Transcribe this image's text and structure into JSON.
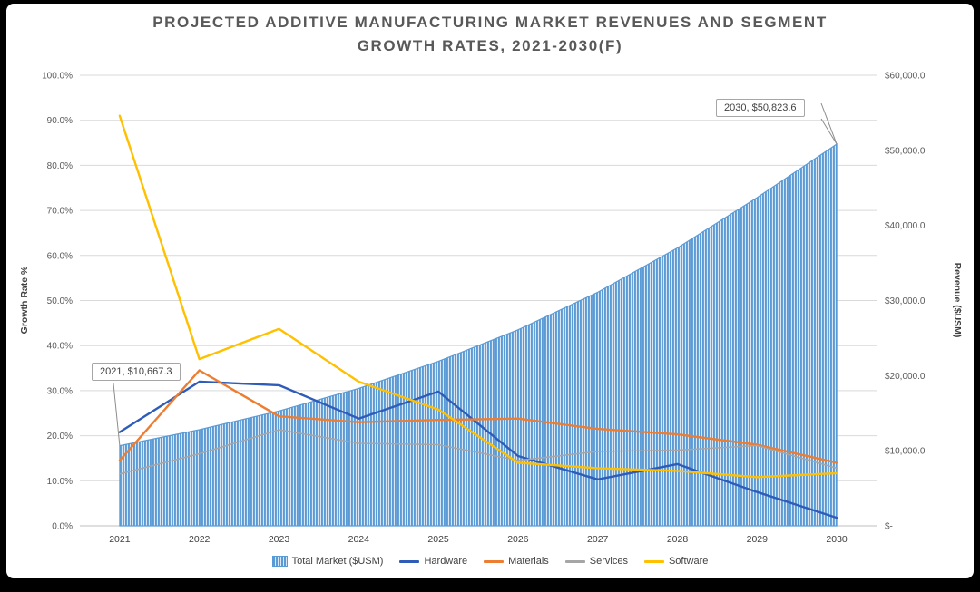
{
  "title": "PROJECTED ADDITIVE MANUFACTURING MARKET REVENUES AND SEGMENT GROWTH RATES, 2021-2030(F)",
  "callouts": {
    "c2021": "2021,  $10,667.3",
    "c2030": "2030,  $50,823.6"
  },
  "legend": {
    "items": [
      {
        "label": "Total Market ($USM)",
        "color": "#5b9bd5",
        "swatch": "area"
      },
      {
        "label": "Hardware",
        "color": "#2e5cb8",
        "swatch": "line"
      },
      {
        "label": "Materials",
        "color": "#ed7d31",
        "swatch": "line"
      },
      {
        "label": "Services",
        "color": "#a6a6a6",
        "swatch": "line"
      },
      {
        "label": "Software",
        "color": "#ffc000",
        "swatch": "line"
      }
    ]
  },
  "chart_data": {
    "type": "combo",
    "title": "PROJECTED ADDITIVE MANUFACTURING MARKET REVENUES AND SEGMENT GROWTH RATES, 2021-2030(F)",
    "categories": [
      "2021",
      "2022",
      "2023",
      "2024",
      "2025",
      "2026",
      "2027",
      "2028",
      "2029",
      "2030"
    ],
    "left_axis": {
      "label": "Growth Rate %",
      "min": 0,
      "max": 100,
      "tick_step": 10,
      "tick_labels": [
        "0.0%",
        "10.0%",
        "20.0%",
        "30.0%",
        "40.0%",
        "50.0%",
        "60.0%",
        "70.0%",
        "80.0%",
        "90.0%",
        "100.0%"
      ]
    },
    "right_axis": {
      "label": "Revenue ($USM)",
      "min": 0,
      "max": 60000,
      "tick_step": 10000,
      "tick_labels": [
        "$-",
        "$10,000.0",
        "$20,000.0",
        "$30,000.0",
        "$40,000.0",
        "$50,000.0",
        "$60,000.0"
      ]
    },
    "area_series": {
      "name": "Total Market ($USM)",
      "axis": "right",
      "color": "#5b9bd5",
      "fill_light": "#d9e7f5",
      "values": [
        10667.3,
        12800,
        15300,
        18300,
        21900,
        26100,
        31100,
        37000,
        43700,
        50823.6
      ]
    },
    "line_series": [
      {
        "name": "Hardware",
        "axis": "left",
        "color": "#2e5cb8",
        "values": [
          20.8,
          32.0,
          31.2,
          23.8,
          29.8,
          15.5,
          10.3,
          13.7,
          7.5,
          1.8
        ]
      },
      {
        "name": "Materials",
        "axis": "left",
        "color": "#ed7d31",
        "values": [
          14.5,
          34.5,
          24.3,
          23.0,
          23.5,
          23.8,
          21.5,
          20.3,
          18.0,
          14.0
        ]
      },
      {
        "name": "Services",
        "axis": "left",
        "color": "#a6a6a6",
        "values": [
          11.5,
          16.0,
          21.3,
          18.3,
          18.0,
          14.5,
          16.5,
          16.8,
          17.8,
          12.8
        ]
      },
      {
        "name": "Software",
        "axis": "left",
        "color": "#ffc000",
        "values": [
          91.0,
          37.0,
          43.7,
          32.0,
          25.8,
          14.0,
          12.8,
          12.2,
          10.8,
          11.7
        ]
      }
    ],
    "annotations": [
      {
        "text": "2021,  $10,667.3",
        "target_category": "2021",
        "target_value": 10667.3
      },
      {
        "text": "2030,  $50,823.6",
        "target_category": "2030",
        "target_value": 50823.6
      }
    ],
    "grid": true,
    "legend_position": "bottom"
  }
}
